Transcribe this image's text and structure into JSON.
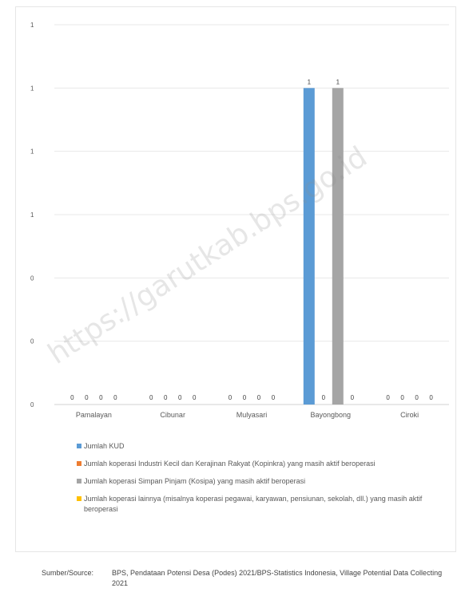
{
  "chart_data": {
    "type": "bar",
    "categories": [
      "Pamalayan",
      "Cibunar",
      "Mulyasari",
      "Bayongbong",
      "Ciroki"
    ],
    "series": [
      {
        "name": "Jumlah KUD",
        "color": "#5b9bd5",
        "values": [
          0,
          0,
          0,
          1,
          0
        ]
      },
      {
        "name": "Jumlah koperasi Industri Kecil dan Kerajinan Rakyat (Kopinkra) yang masih aktif beroperasi",
        "color": "#ed7d31",
        "values": [
          0,
          0,
          0,
          0,
          0
        ]
      },
      {
        "name": "Jumlah koperasi Simpan Pinjam (Kosipa) yang masih aktif beroperasi",
        "color": "#a5a5a5",
        "values": [
          0,
          0,
          0,
          1,
          0
        ]
      },
      {
        "name": "Jumlah koperasi lainnya (misalnya koperasi pegawai, karyawan, pensiunan, sekolah, dll.) yang masih aktif beroperasi",
        "color": "#ffc000",
        "values": [
          0,
          0,
          0,
          0,
          0
        ]
      }
    ],
    "ylim": [
      0,
      1.2
    ],
    "yticks": [
      0,
      0.2,
      0.4,
      0.6,
      0.8,
      1.0,
      1.2
    ],
    "ytick_labels": [
      "0",
      "0",
      "0",
      "1",
      "1",
      "1",
      "1"
    ],
    "legend_position": "bottom",
    "grid": true
  },
  "watermark": "https://garutkab.bps.go.id",
  "source": {
    "label": "Sumber/Source:",
    "text": "BPS, Pendataan Potensi Desa (Podes) 2021/BPS-Statistics Indonesia, Village Potential Data Collecting 2021"
  }
}
